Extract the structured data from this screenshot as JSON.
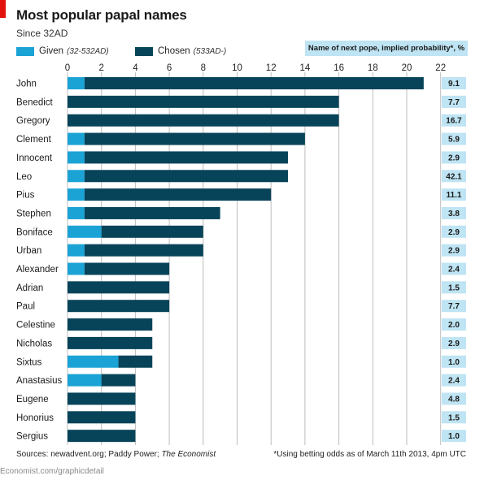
{
  "header": {
    "title": "Most popular papal names",
    "subtitle": "Since 32AD"
  },
  "legend": {
    "given_label": "Given",
    "given_range": "(32-532AD)",
    "chosen_label": "Chosen",
    "chosen_range": "(533AD-)"
  },
  "odds_header": "Name of next pope, implied probability*, %",
  "colors": {
    "given": "#1ba3d6",
    "chosen": "#084459",
    "odds_bg": "#bfe4f3",
    "grid": "#bdbdbd",
    "accent": "#e3120b"
  },
  "chart_data": {
    "type": "bar",
    "orientation": "horizontal",
    "stacked": true,
    "title": "Most popular papal names",
    "subtitle": "Since 32AD",
    "xlim": [
      0,
      22
    ],
    "xticks": [
      0,
      2,
      4,
      6,
      8,
      10,
      12,
      14,
      16,
      18,
      20,
      22
    ],
    "grid": true,
    "legend_position": "top-left",
    "categories": [
      "John",
      "Benedict",
      "Gregory",
      "Clement",
      "Innocent",
      "Leo",
      "Pius",
      "Stephen",
      "Boniface",
      "Urban",
      "Alexander",
      "Adrian",
      "Paul",
      "Celestine",
      "Nicholas",
      "Sixtus",
      "Anastasius",
      "Eugene",
      "Honorius",
      "Sergius"
    ],
    "series": [
      {
        "name": "Given (32-532AD)",
        "values": [
          1,
          0,
          0,
          1,
          1,
          1,
          1,
          1,
          2,
          1,
          1,
          0,
          0,
          0,
          0,
          3,
          2,
          0,
          0,
          0
        ]
      },
      {
        "name": "Chosen (533AD-)",
        "values": [
          20,
          16,
          16,
          13,
          12,
          12,
          11,
          8,
          6,
          7,
          5,
          6,
          6,
          5,
          5,
          2,
          2,
          4,
          4,
          4
        ]
      }
    ],
    "odds_series": {
      "name": "Name of next pope, implied probability*, %",
      "values": [
        "9.1",
        "7.7",
        "16.7",
        "5.9",
        "2.9",
        "42.1",
        "11.1",
        "3.8",
        "2.9",
        "2.9",
        "2.4",
        "1.5",
        "7.7",
        "2.0",
        "2.9",
        "1.0",
        "2.4",
        "4.8",
        "1.5",
        "1.0"
      ]
    }
  },
  "footer": {
    "sources_prefix": "Sources: newadvent.org; Paddy Power; ",
    "sources_italic": "The Economist",
    "note": "*Using betting odds as of March 11th 2013, 4pm UTC",
    "site": "Economist.com/graphicdetail"
  }
}
